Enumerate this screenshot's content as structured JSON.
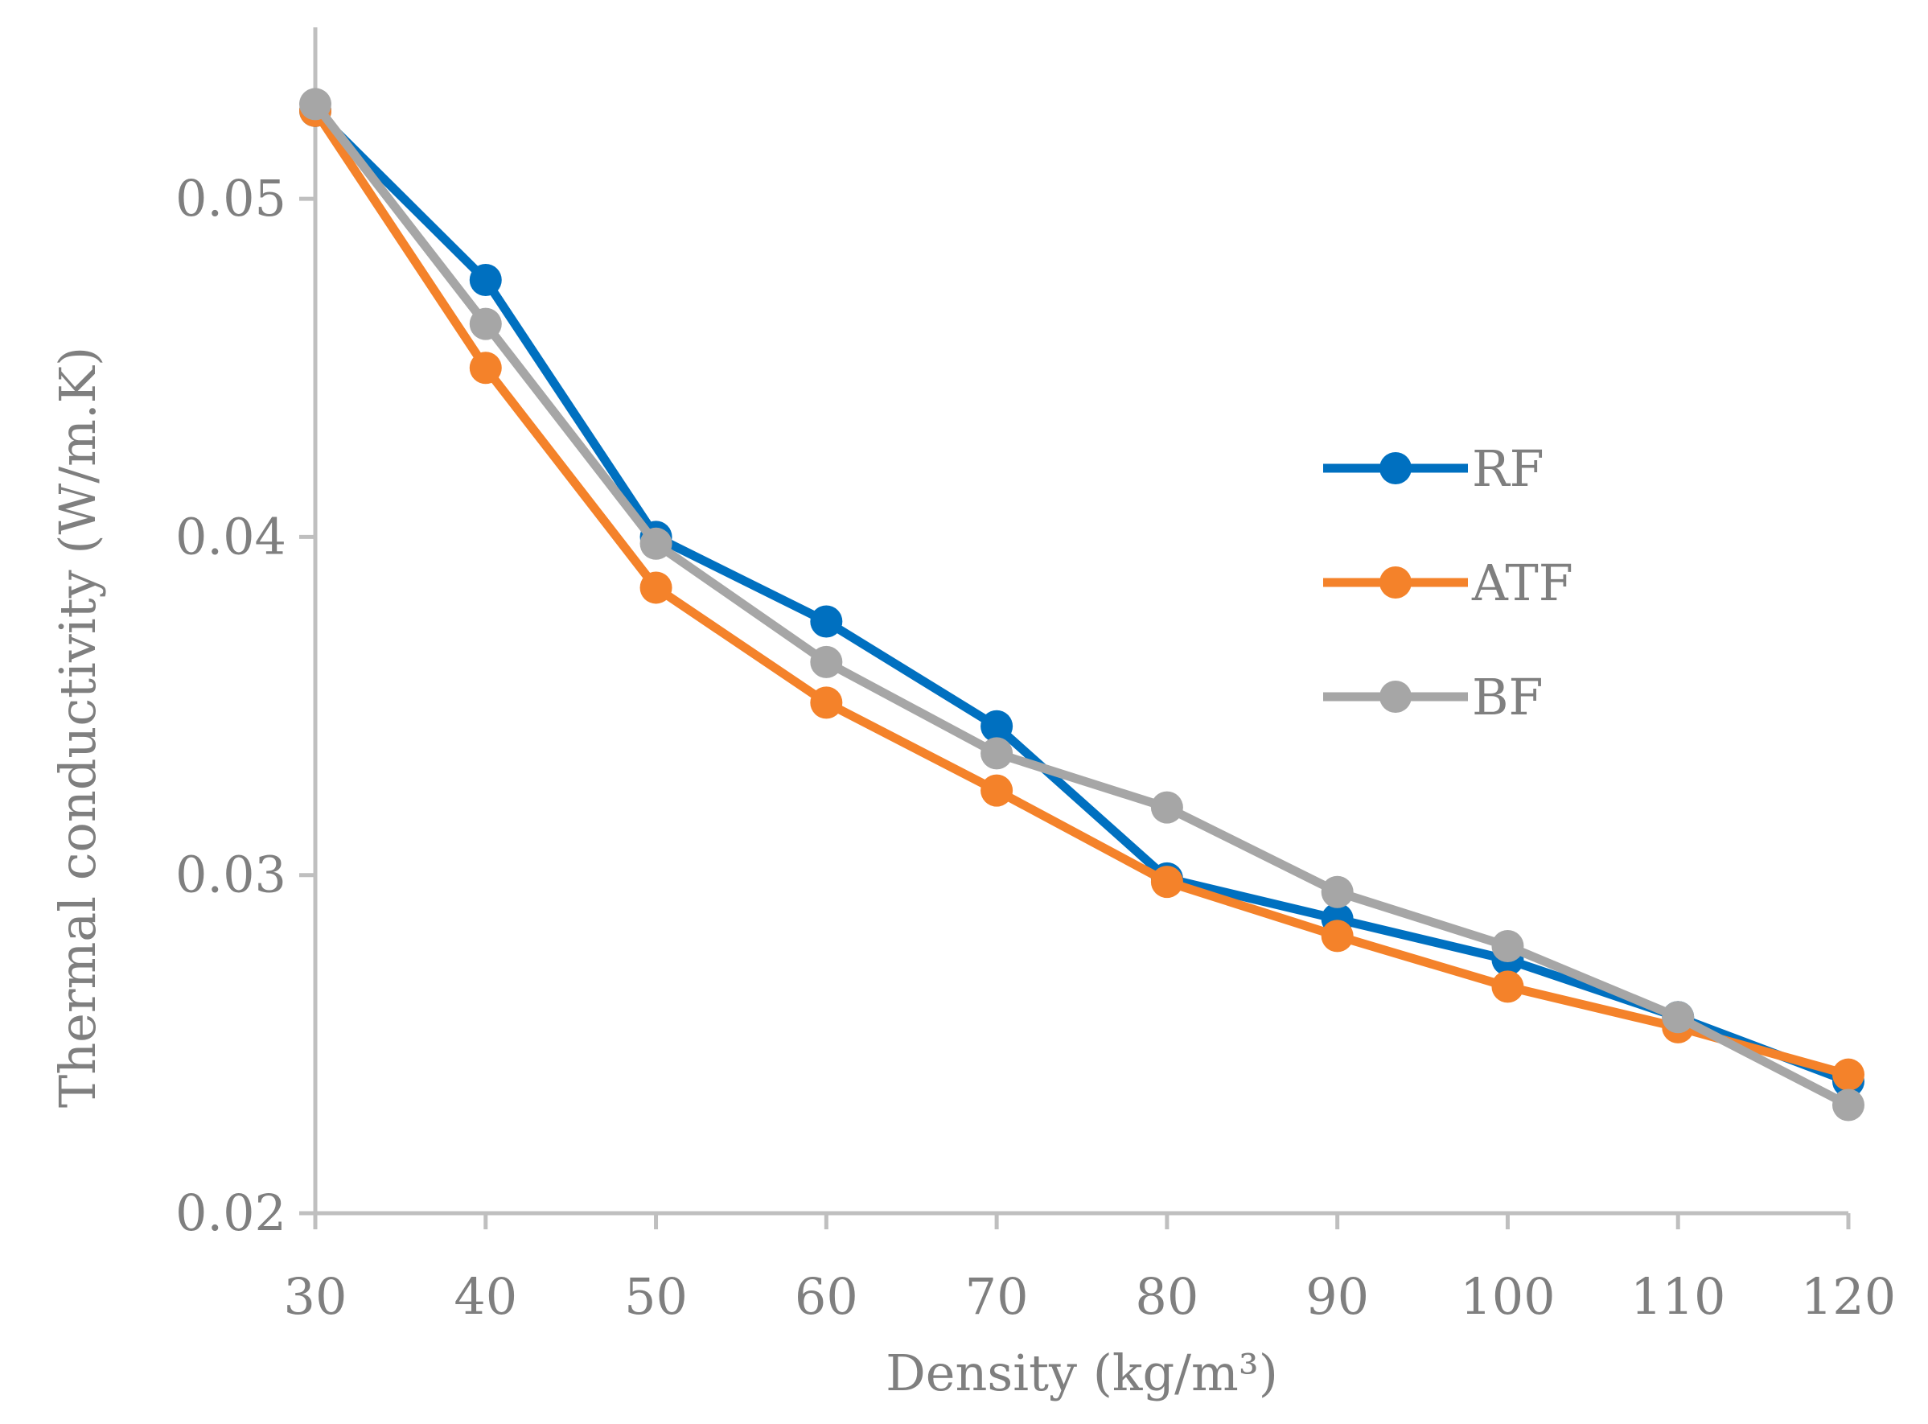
{
  "chart_data": {
    "type": "line",
    "title": "",
    "xlabel": "Density (kg/m³)",
    "ylabel": "Thermal conductivity (W/m.K)",
    "x": [
      30,
      40,
      50,
      60,
      70,
      80,
      90,
      100,
      110,
      120
    ],
    "x_tick_labels": [
      "30",
      "40",
      "50",
      "60",
      "70",
      "80",
      "90",
      "100",
      "110",
      "120"
    ],
    "y_tick_labels": [
      "0.02",
      "0.03",
      "0.04",
      "0.05"
    ],
    "y_ticks": [
      0.02,
      0.03,
      0.04,
      0.05
    ],
    "ylim": [
      0.02,
      0.0535
    ],
    "xlim": [
      30,
      120
    ],
    "grid": false,
    "legend_position": "right",
    "series": [
      {
        "name": "RF",
        "color": "#0070c0",
        "values": [
          0.0526,
          0.0476,
          0.04,
          0.0375,
          0.0344,
          0.0299,
          0.0287,
          0.0275,
          0.0258,
          0.0239
        ]
      },
      {
        "name": "ATF",
        "color": "#f4822a",
        "values": [
          0.0526,
          0.045,
          0.0385,
          0.0351,
          0.0325,
          0.0298,
          0.0282,
          0.0267,
          0.0255,
          0.0241
        ]
      },
      {
        "name": "BF",
        "color": "#a6a6a6",
        "values": [
          0.0528,
          0.0463,
          0.0398,
          0.0363,
          0.0336,
          0.032,
          0.0295,
          0.0279,
          0.0258,
          0.0232
        ]
      }
    ],
    "axis_color": "#bfbfbf",
    "text_color": "#7f7f7f"
  }
}
